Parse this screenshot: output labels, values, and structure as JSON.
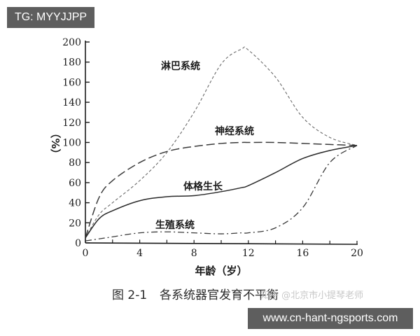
{
  "badges": {
    "top_left": "TG: MYYJJPP",
    "bottom_right": "www.cn-hant-ngsports.com"
  },
  "caption": {
    "figure_number": "图 2-1",
    "title": "各系统器官发育不平衡",
    "watermark": "知乎 @北京市小提琴老师"
  },
  "chart_data": {
    "type": "line",
    "title": "图 2-1 各系统器官发育不平衡",
    "xlabel": "年龄（岁）",
    "ylabel": "（%）",
    "xlim": [
      0,
      20
    ],
    "ylim": [
      0,
      200
    ],
    "x_ticks": [
      0,
      4,
      8,
      12,
      16,
      20
    ],
    "x_minor_ticks": [
      2,
      6,
      10,
      14,
      18
    ],
    "y_ticks": [
      0,
      20,
      40,
      60,
      80,
      100,
      120,
      140,
      160,
      180,
      200
    ],
    "grid": false,
    "legend": "inline labels",
    "x": [
      0,
      1,
      2,
      4,
      6,
      8,
      10,
      11.5,
      12,
      14,
      16,
      18,
      20
    ],
    "series": [
      {
        "name": "淋巴系统",
        "style": "short-dash",
        "values": [
          5,
          28,
          40,
          62,
          90,
          130,
          178,
          193,
          192,
          165,
          125,
          105,
          97
        ]
      },
      {
        "name": "神经系统",
        "style": "long-dash",
        "values": [
          5,
          45,
          62,
          80,
          91,
          96,
          99,
          100,
          100,
          100,
          99,
          98,
          97
        ]
      },
      {
        "name": "体格生长",
        "style": "solid",
        "values": [
          5,
          24,
          32,
          42,
          46,
          47,
          51,
          55,
          57,
          70,
          84,
          92,
          97
        ]
      },
      {
        "name": "生殖系统",
        "style": "dash-dot",
        "values": [
          2,
          4,
          6,
          10,
          11,
          10,
          9,
          10,
          10,
          15,
          35,
          80,
          97
        ]
      }
    ],
    "series_labels": {
      "lymphatic": "淋巴系统",
      "nervous": "神经系统",
      "body": "体格生长",
      "reproductive": "生殖系统"
    }
  }
}
